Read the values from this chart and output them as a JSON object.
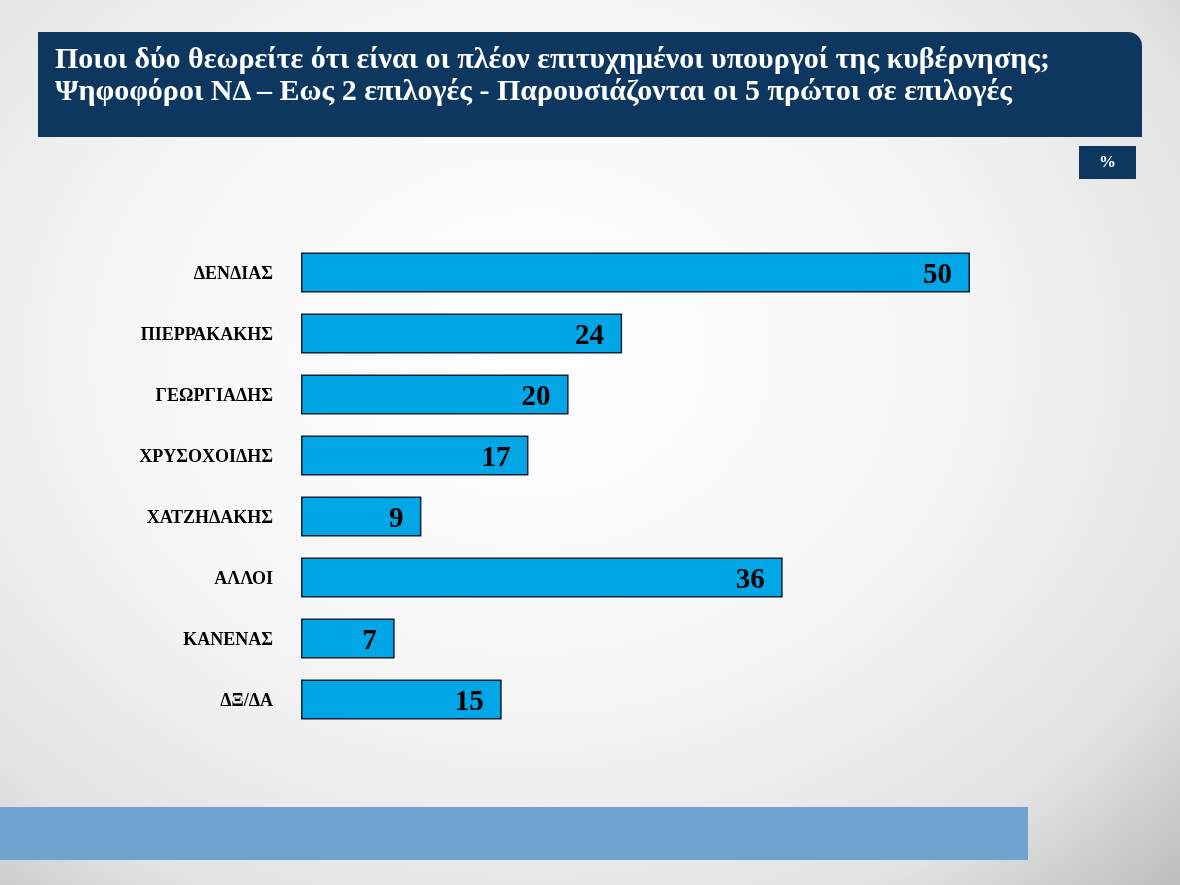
{
  "chart_data": {
    "type": "bar",
    "orientation": "horizontal",
    "title": "Ποιοι δύο θεωρείτε ότι είναι οι πλέον επιτυχημένοι υπουργοί της κυβέρνησης;",
    "subtitle": "Ψηφοφόροι ΝΔ – Εως 2 επιλογές - Παρουσιάζονται οι 5 πρώτοι σε επιλογές",
    "categories": [
      "ΔΕΝΔΙΑΣ",
      "ΠΙΕΡΡΑΚΑΚΗΣ",
      "ΓΕΩΡΓΙΑΔΗΣ",
      "ΧΡΥΣΟΧΟΙΔΗΣ",
      "ΧΑΤΖΗΔΑΚΗΣ",
      "ΑΛΛΟΙ",
      "ΚΑΝΕΝΑΣ",
      "ΔΞ/ΔΑ"
    ],
    "values": [
      50,
      24,
      20,
      17,
      9,
      36,
      7,
      15
    ],
    "color": "#00a6e6",
    "data_labels": true,
    "tick_labels": "y",
    "annotations": [
      "%"
    ]
  }
}
